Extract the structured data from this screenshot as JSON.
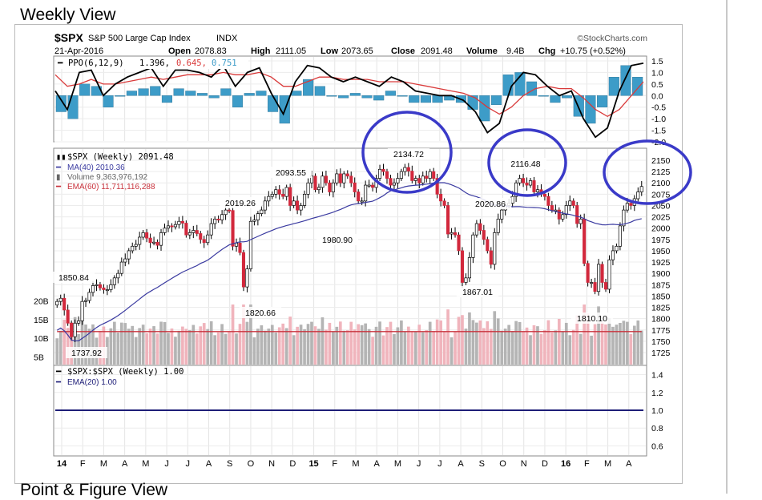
{
  "page": {
    "section_title": "Weekly View",
    "next_section_title": "Point & Figure View"
  },
  "header": {
    "symbol": "$SPX",
    "name": "S&P 500 Large Cap Index",
    "exchange": "INDX",
    "credit": "©StockCharts.com",
    "date": "21-Apr-2016",
    "open_label": "Open",
    "open": "2078.83",
    "high_label": "High",
    "high": "2111.05",
    "low_label": "Low",
    "low": "2073.65",
    "close_label": "Close",
    "close": "2091.48",
    "volume_label": "Volume",
    "volume": "9.4B",
    "chg_label": "Chg",
    "chg": "+10.75 (+0.52%)"
  },
  "legend": {
    "ppo_label": "PPO(6,12,9)",
    "ppo_value": "1.396,",
    "ppo_signal": "0.645,",
    "ppo_hist": "0.751",
    "price_label": "$SPX (Weekly) 2091.48",
    "ma_label": "MA(40) 2010.36",
    "volume_label": "Volume 9,363,976,192",
    "ema60_label": "EMA(60) 11,711,116,288",
    "ratio_label": "$SPX:$SPX (Weekly) 1.00",
    "ema20_label": "EMA(20) 1.00"
  },
  "colors": {
    "up": "#ffffff",
    "down": "#d2283c",
    "ma": "#3a3aa0",
    "ema60": "#c8323c",
    "ppo_line": "#000000",
    "ppo_signal": "#d93a3a",
    "ppo_hist": "#3d9cc8",
    "vol_up": "#b4b4b4",
    "vol_down": "#f0b4bc",
    "ratio": "#1e1e78",
    "circle": "#3a3ac8"
  },
  "chart_data": [
    {
      "type": "line",
      "title": "PPO(6,12,9)",
      "ylim": [
        -2.0,
        1.5
      ],
      "yticks": [
        "1.5",
        "1.0",
        "0.5",
        "0.0",
        "-0.5",
        "-1.0",
        "-1.5",
        "-2.0"
      ],
      "series": [
        {
          "name": "PPO",
          "values": [
            0.2,
            -0.6,
            1.0,
            1.1,
            0.0,
            0.5,
            0.8,
            1.0,
            1.2,
            0.4,
            1.1,
            1.1,
            1.0,
            0.8,
            1.3,
            0.4,
            1.0,
            1.2,
            0.1,
            -0.8,
            0.6,
            1.3,
            1.2,
            0.8,
            0.6,
            0.8,
            0.6,
            0.4,
            0.8,
            0.6,
            0.2,
            0.1,
            0.0,
            0.0,
            -0.2,
            -0.7,
            -1.6,
            -1.2,
            0.4,
            1.0,
            0.9,
            0.4,
            0.0,
            0.2,
            -1.0,
            -1.8,
            -1.4,
            0.2,
            1.3,
            1.4
          ]
        },
        {
          "name": "Signal",
          "values": [
            0.9,
            0.4,
            0.5,
            0.7,
            0.5,
            0.5,
            0.6,
            0.7,
            0.8,
            0.7,
            0.8,
            0.9,
            0.9,
            0.9,
            1.0,
            0.9,
            0.9,
            1.0,
            0.8,
            0.4,
            0.4,
            0.6,
            0.8,
            0.8,
            0.7,
            0.7,
            0.7,
            0.6,
            0.6,
            0.6,
            0.5,
            0.4,
            0.3,
            0.2,
            0.1,
            -0.1,
            -0.5,
            -0.8,
            -0.5,
            0.0,
            0.3,
            0.4,
            0.3,
            0.3,
            -0.1,
            -0.6,
            -0.9,
            -0.6,
            0.0,
            0.6
          ]
        }
      ],
      "histogram": [
        -0.7,
        -1.0,
        0.5,
        0.4,
        -0.5,
        0.0,
        0.2,
        0.3,
        0.4,
        -0.3,
        0.3,
        0.2,
        0.1,
        -0.1,
        0.3,
        -0.5,
        0.1,
        0.2,
        -0.7,
        -1.2,
        0.2,
        0.7,
        0.4,
        0.0,
        -0.1,
        0.1,
        -0.1,
        -0.2,
        0.2,
        0.0,
        -0.3,
        -0.3,
        -0.3,
        -0.2,
        -0.3,
        -0.6,
        -1.1,
        -0.4,
        0.9,
        1.0,
        0.6,
        0.0,
        -0.3,
        -0.1,
        -0.9,
        -1.2,
        -0.5,
        0.8,
        1.3,
        0.8
      ]
    },
    {
      "type": "candlestick",
      "title": "$SPX (Weekly) 2091.48",
      "ylim": [
        1712,
        2162
      ],
      "yticks": [
        "2150",
        "2125",
        "2100",
        "2075",
        "2050",
        "2025",
        "2000",
        "1975",
        "1950",
        "1925",
        "1900",
        "1875",
        "1850",
        "1825",
        "1800",
        "1775",
        "1750",
        "1725"
      ],
      "xticks": [
        "14",
        "F",
        "M",
        "A",
        "M",
        "J",
        "J",
        "A",
        "S",
        "O",
        "N",
        "D",
        "15",
        "F",
        "M",
        "A",
        "M",
        "J",
        "J",
        "A",
        "S",
        "O",
        "N",
        "D",
        "16",
        "F",
        "M",
        "A"
      ],
      "close": [
        1838,
        1845,
        1819,
        1790,
        1760,
        1790,
        1795,
        1838,
        1840,
        1858,
        1873,
        1875,
        1868,
        1864,
        1864,
        1875,
        1890,
        1900,
        1925,
        1932,
        1950,
        1960,
        1964,
        1980,
        1990,
        1978,
        1968,
        1969,
        1962,
        1990,
        2000,
        2005,
        2003,
        2008,
        2015,
        2011,
        1985,
        1990,
        1995,
        1988,
        1975,
        1968,
        1985,
        2010,
        2020,
        2018,
        2030,
        2040,
        2039,
        1960,
        1967,
        1946,
        1870,
        1910,
        2015,
        2018,
        2032,
        2040,
        2060,
        2070,
        2075,
        2085,
        2075,
        2070,
        2090,
        2050,
        2060,
        2040,
        2050,
        2075,
        2100,
        2115,
        2085,
        2090,
        2115,
        2100,
        2080,
        2100,
        2120,
        2100,
        2120,
        2115,
        2100,
        2080,
        2060,
        2060,
        2095,
        2095,
        2090,
        2110,
        2130,
        2125,
        2110,
        2095,
        2100,
        2110,
        2125,
        2134,
        2126,
        2105,
        2110,
        2100,
        2115,
        2110,
        2125,
        2110,
        2075,
        2060,
        2050,
        1987,
        1990,
        1985,
        1950,
        1880,
        1890,
        1935,
        1985,
        2010,
        1995,
        1975,
        1950,
        1920,
        1990,
        2020,
        2040,
        2050,
        2055,
        2070,
        2100,
        2110,
        2100,
        2095,
        2105,
        2080,
        2085,
        2075,
        2070,
        2050,
        2040,
        2040,
        2020,
        2030,
        2050,
        2060,
        2050,
        2010,
        2020,
        1922,
        1880,
        1880,
        1860,
        1920,
        1880,
        1865,
        1930,
        1950,
        1960,
        2005,
        2040,
        2055,
        2050,
        2065,
        2080,
        2092
      ],
      "labels": [
        "1850.84",
        "1737.92",
        "2019.26",
        "1820.66",
        "2093.55",
        "1980.90",
        "2134.72",
        "2020.86",
        "1867.01",
        "2116.48",
        "1810.10"
      ],
      "ma40_label": "MA(40) 2010.36"
    },
    {
      "type": "bar",
      "title": "Volume",
      "ylim": [
        3,
        22
      ],
      "yticks": [
        "20B",
        "15B",
        "10B",
        "5B"
      ],
      "ema60_label": "EMA(60) 11,711,116,288"
    },
    {
      "type": "line",
      "title": "$SPX:$SPX (Weekly) 1.00",
      "ylim": [
        0.5,
        1.5
      ],
      "yticks": [
        "1.4",
        "1.2",
        "1.0",
        "0.8",
        "0.6"
      ],
      "series": [
        {
          "name": "ratio",
          "value": 1.0
        }
      ]
    }
  ]
}
